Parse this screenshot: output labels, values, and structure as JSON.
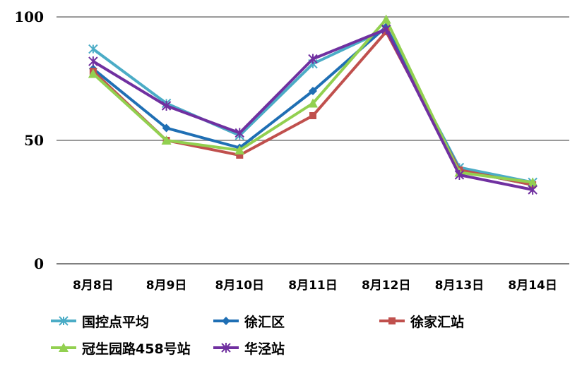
{
  "chart_data": {
    "type": "line",
    "categories": [
      "8月8日",
      "8月9日",
      "8月10日",
      "8月11日",
      "8月12日",
      "8月13日",
      "8月14日"
    ],
    "ylim": [
      0,
      100
    ],
    "yticks": [
      0,
      50,
      100
    ],
    "grid": true,
    "legend_position": "bottom",
    "series": [
      {
        "name": "国控点平均",
        "color": "#4bacc6",
        "marker": "x-star",
        "values": [
          87,
          65,
          52,
          81,
          95,
          39,
          33
        ]
      },
      {
        "name": "徐汇区",
        "color": "#1f6fb4",
        "marker": "diamond",
        "values": [
          79,
          55,
          47,
          70,
          96,
          38,
          32
        ]
      },
      {
        "name": "徐家汇站",
        "color": "#c0504d",
        "marker": "square",
        "values": [
          78,
          50,
          44,
          60,
          94,
          38,
          32
        ]
      },
      {
        "name": "冠生园路458号站",
        "color": "#92d050",
        "marker": "triangle",
        "values": [
          77,
          50,
          46,
          65,
          99,
          37,
          33
        ]
      },
      {
        "name": "华泾站",
        "color": "#7030a0",
        "marker": "star",
        "values": [
          82,
          64,
          53,
          83,
          95,
          36,
          30
        ]
      }
    ]
  }
}
